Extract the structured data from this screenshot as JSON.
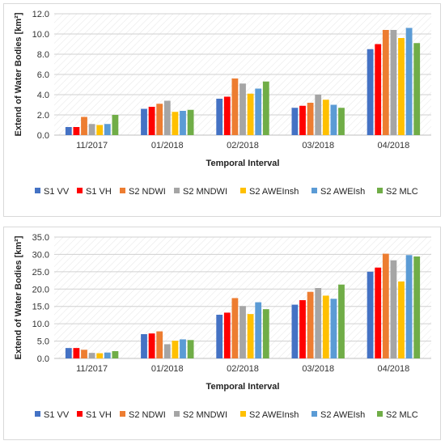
{
  "legend": {
    "series": [
      {
        "name": "S1 VV",
        "color": "#4472C4"
      },
      {
        "name": "S1 VH",
        "color": "#FF0000"
      },
      {
        "name": "S2 NDWI",
        "color": "#ED7D31"
      },
      {
        "name": "S2 MNDWI",
        "color": "#A5A5A5"
      },
      {
        "name": "S2 AWEInsh",
        "color": "#FFC000"
      },
      {
        "name": "S2 AWEIsh",
        "color": "#5B9BD5"
      },
      {
        "name": "S2 MLC",
        "color": "#70AD47"
      }
    ]
  },
  "chart_data": [
    {
      "type": "bar",
      "title": "",
      "xlabel": "Temporal Interval",
      "ylabel": "Extend of Water Bodies [km²]",
      "ylim": [
        0,
        12
      ],
      "ytick_step": 2,
      "ytick_labels": [
        "0.0",
        "2.0",
        "4.0",
        "6.0",
        "8.0",
        "10.0",
        "12.0"
      ],
      "grid": true,
      "legend_position": "bottom",
      "categories": [
        "11/2017",
        "01/2018",
        "02/2018",
        "03/2018",
        "04/2018"
      ],
      "series": [
        {
          "name": "S1 VV",
          "values": [
            0.8,
            2.6,
            3.6,
            2.7,
            8.5
          ]
        },
        {
          "name": "S1 VH",
          "values": [
            0.8,
            2.8,
            3.8,
            2.9,
            9.0
          ]
        },
        {
          "name": "S2 NDWI",
          "values": [
            1.8,
            3.1,
            5.6,
            3.2,
            10.4
          ]
        },
        {
          "name": "S2 MNDWI",
          "values": [
            1.1,
            3.4,
            5.1,
            4.0,
            10.4
          ]
        },
        {
          "name": "S2 AWEInsh",
          "values": [
            1.0,
            2.3,
            4.1,
            3.5,
            9.6
          ]
        },
        {
          "name": "S2 AWEIsh",
          "values": [
            1.1,
            2.4,
            4.6,
            3.0,
            10.6
          ]
        },
        {
          "name": "S2 MLC",
          "values": [
            2.0,
            2.5,
            5.3,
            2.7,
            9.1
          ]
        }
      ]
    },
    {
      "type": "bar",
      "title": "",
      "xlabel": "Temporal Interval",
      "ylabel": "Extend of Water Bodies [km²]",
      "ylim": [
        0,
        35
      ],
      "ytick_step": 5,
      "ytick_labels": [
        "0.0",
        "5.0",
        "10.0",
        "15.0",
        "20.0",
        "25.0",
        "30.0",
        "35.0"
      ],
      "grid": true,
      "legend_position": "bottom",
      "categories": [
        "11/2017",
        "01/2018",
        "02/2018",
        "03/2018",
        "04/2018"
      ],
      "series": [
        {
          "name": "S1 VV",
          "values": [
            3.0,
            7.0,
            12.6,
            15.5,
            25.0
          ]
        },
        {
          "name": "S1 VH",
          "values": [
            3.0,
            7.2,
            13.2,
            16.8,
            26.2
          ]
        },
        {
          "name": "S2 NDWI",
          "values": [
            2.5,
            7.8,
            17.4,
            19.2,
            30.2
          ]
        },
        {
          "name": "S2 MNDWI",
          "values": [
            1.6,
            4.1,
            15.1,
            20.3,
            28.3
          ]
        },
        {
          "name": "S2 AWEInsh",
          "values": [
            1.5,
            5.1,
            12.8,
            18.1,
            22.2
          ]
        },
        {
          "name": "S2 AWEIsh",
          "values": [
            1.7,
            5.5,
            16.2,
            17.2,
            29.8
          ]
        },
        {
          "name": "S2 MLC",
          "values": [
            2.1,
            5.3,
            14.2,
            21.3,
            29.4
          ]
        }
      ]
    }
  ]
}
